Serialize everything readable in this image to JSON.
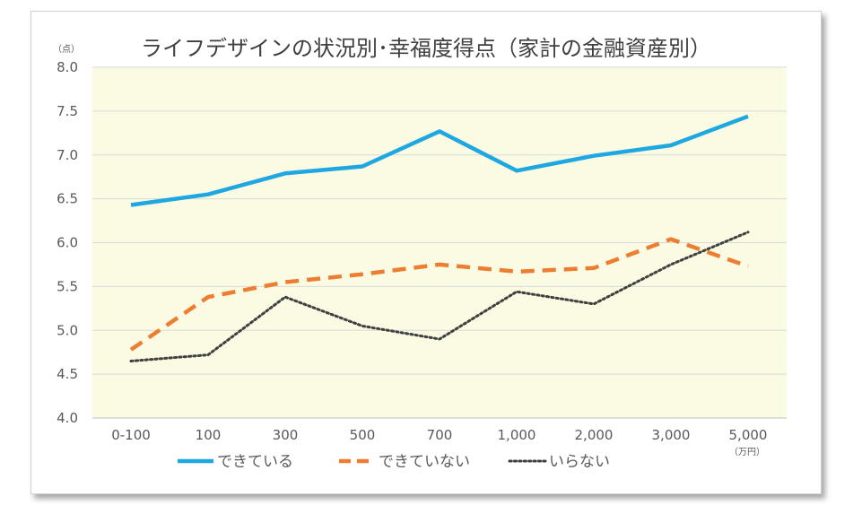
{
  "chart_data": {
    "type": "line",
    "title": "ライフデザインの状況別･幸福度得点（家計の金融資産別）",
    "y_unit": "（点）",
    "x_unit": "（万円）",
    "categories": [
      "0-100",
      "100",
      "300",
      "500",
      "700",
      "1,000",
      "2,000",
      "3,000",
      "5,000"
    ],
    "ylim": [
      4.0,
      8.0
    ],
    "y_ticks": [
      "4.0",
      "4.5",
      "5.0",
      "5.5",
      "6.0",
      "6.5",
      "7.0",
      "7.5",
      "8.0"
    ],
    "grid": true,
    "legend_position": "bottom",
    "plot_background": "#fafbe2",
    "series": [
      {
        "name": "できている",
        "style": "solid",
        "color": "#1ea7e1",
        "values": [
          6.43,
          6.55,
          6.79,
          6.87,
          7.27,
          6.82,
          6.99,
          7.11,
          7.44
        ]
      },
      {
        "name": "できていない",
        "style": "dashed",
        "color": "#ed7d31",
        "values": [
          4.78,
          5.38,
          5.55,
          5.64,
          5.75,
          5.67,
          5.71,
          6.04,
          5.73
        ]
      },
      {
        "name": "いらない",
        "style": "dotted",
        "color": "#404040",
        "values": [
          4.65,
          4.72,
          5.38,
          5.05,
          4.9,
          5.44,
          5.3,
          5.75,
          6.12
        ]
      }
    ]
  }
}
